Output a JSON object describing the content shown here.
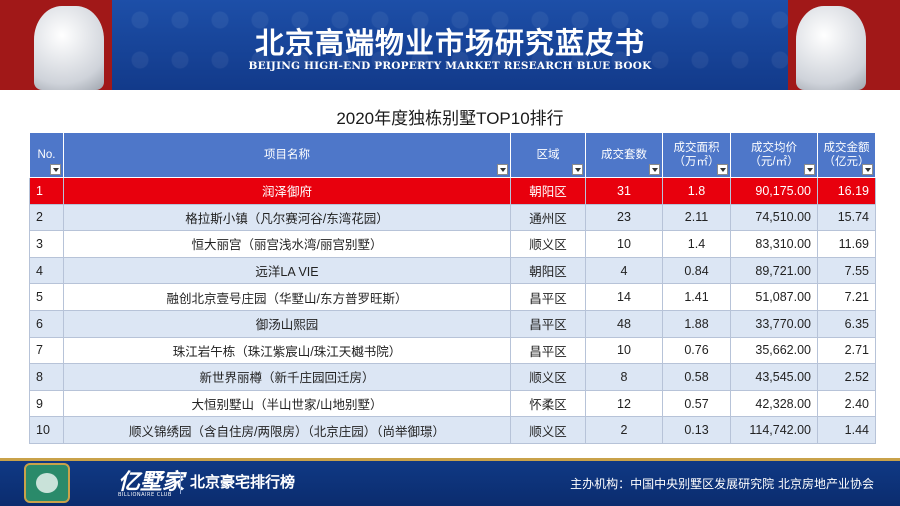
{
  "banner": {
    "title": "北京高端物业市场研究蓝皮书",
    "subtitle": "BEIJING HIGH-END PROPERTY MARKET RESEARCH BLUE BOOK"
  },
  "table": {
    "title": "2020年度独栋别墅TOP10排行",
    "headers": {
      "no": "No.",
      "name": "项目名称",
      "district": "区域",
      "units": "成交套数",
      "area_l1": "成交面积",
      "area_l2": "（万㎡）",
      "price_l1": "成交均价",
      "price_l2": "（元/㎡）",
      "amount_l1": "成交金额",
      "amount_l2": "（亿元）"
    },
    "rows": [
      {
        "no": "1",
        "name": "润泽御府",
        "district": "朝阳区",
        "units": "31",
        "area": "1.8",
        "price": "90,175.00",
        "amount": "16.19"
      },
      {
        "no": "2",
        "name": "格拉斯小镇（凡尔赛河谷/东湾花园）",
        "district": "通州区",
        "units": "23",
        "area": "2.11",
        "price": "74,510.00",
        "amount": "15.74"
      },
      {
        "no": "3",
        "name": "恒大丽宫（丽宫浅水湾/丽宫别墅）",
        "district": "顺义区",
        "units": "10",
        "area": "1.4",
        "price": "83,310.00",
        "amount": "11.69"
      },
      {
        "no": "4",
        "name": "远洋LA VIE",
        "district": "朝阳区",
        "units": "4",
        "area": "0.84",
        "price": "89,721.00",
        "amount": "7.55"
      },
      {
        "no": "5",
        "name": "融创北京壹号庄园（华墅山/东方普罗旺斯）",
        "district": "昌平区",
        "units": "14",
        "area": "1.41",
        "price": "51,087.00",
        "amount": "7.21"
      },
      {
        "no": "6",
        "name": "御汤山熙园",
        "district": "昌平区",
        "units": "48",
        "area": "1.88",
        "price": "33,770.00",
        "amount": "6.35"
      },
      {
        "no": "7",
        "name": "珠江岩午栋（珠江紫宸山/珠江天樾书院）",
        "district": "昌平区",
        "units": "10",
        "area": "0.76",
        "price": "35,662.00",
        "amount": "2.71"
      },
      {
        "no": "8",
        "name": "新世界丽樽（新千庄园回迁房）",
        "district": "顺义区",
        "units": "8",
        "area": "0.58",
        "price": "43,545.00",
        "amount": "2.52"
      },
      {
        "no": "9",
        "name": "大恒别墅山（半山世家/山地别墅）",
        "district": "怀柔区",
        "units": "12",
        "area": "0.57",
        "price": "42,328.00",
        "amount": "2.40"
      },
      {
        "no": "10",
        "name": "顺义锦绣园（含自住房/两限房）（北京庄园）（尚举御璟）",
        "district": "顺义区",
        "units": "2",
        "area": "0.13",
        "price": "114,742.00",
        "amount": "1.44"
      }
    ]
  },
  "footer": {
    "brand": "亿墅家",
    "brand_en": "BILLIONAIRE CLUB",
    "ranking": "北京豪宅排行榜",
    "organizer": "主办机构：中国中央别墅区发展研究院   北京房地产业协会"
  },
  "colors": {
    "header_blue": "#4e77c9",
    "highlight_red": "#e8000d",
    "stripe_blue": "#dce6f4"
  }
}
